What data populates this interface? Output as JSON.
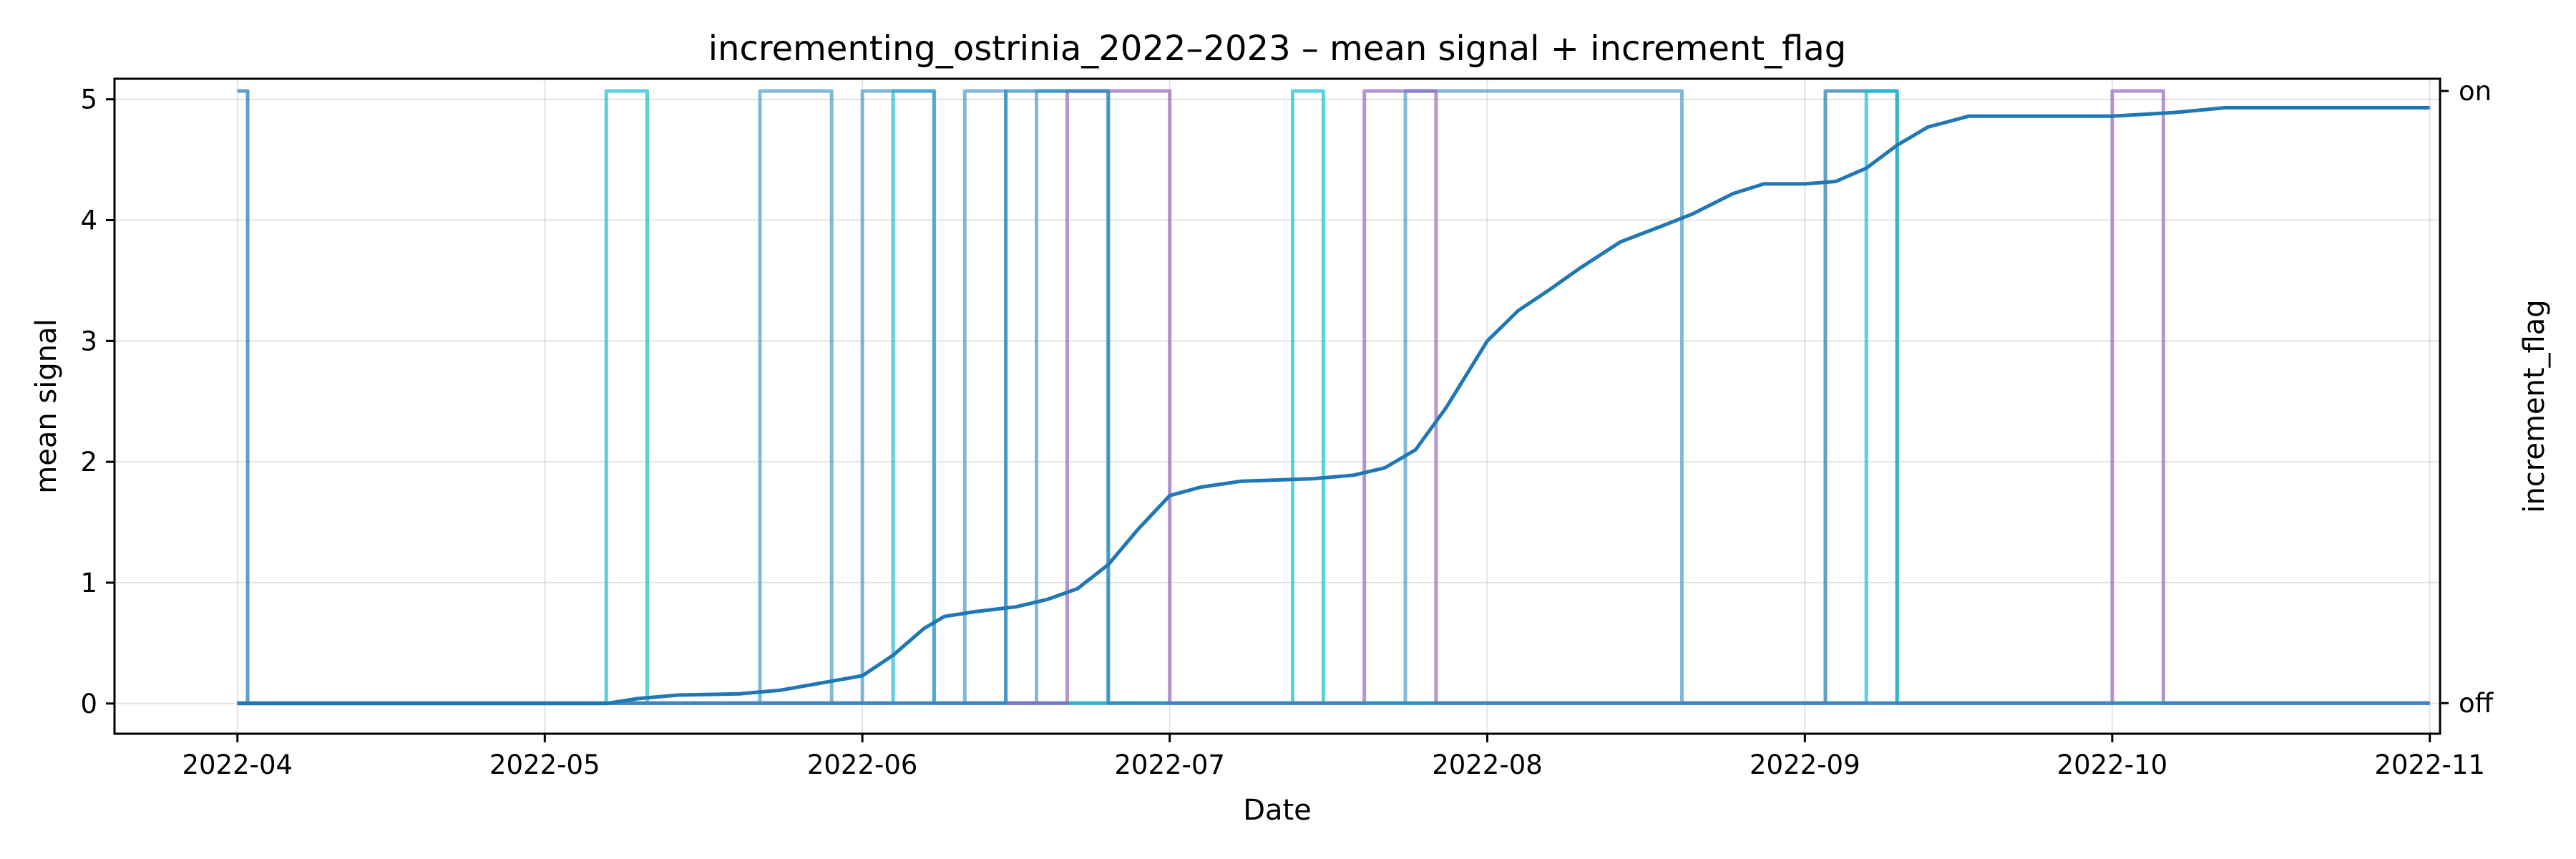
{
  "chart_data": {
    "type": "line",
    "title": "incrementing_ostrinia_2022–2023 – mean signal + increment_flag",
    "xlabel": "Date",
    "ylabel": "mean signal",
    "y2label": "increment_flag",
    "xlim": [
      "2022-03-20",
      "2022-11-02"
    ],
    "ylim": [
      -0.25,
      5.17
    ],
    "y2lim": [
      -0.05,
      1.02
    ],
    "grid": true,
    "x_ticks": [
      {
        "date": "2022-04-01",
        "label": "2022-04"
      },
      {
        "date": "2022-05-01",
        "label": "2022-05"
      },
      {
        "date": "2022-06-01",
        "label": "2022-06"
      },
      {
        "date": "2022-07-01",
        "label": "2022-07"
      },
      {
        "date": "2022-08-01",
        "label": "2022-08"
      },
      {
        "date": "2022-09-01",
        "label": "2022-09"
      },
      {
        "date": "2022-10-01",
        "label": "2022-10"
      },
      {
        "date": "2022-11-01",
        "label": "2022-11"
      }
    ],
    "y_ticks": [
      0,
      1,
      2,
      3,
      4,
      5
    ],
    "y2_ticks": [
      {
        "value": 0,
        "label": "off"
      },
      {
        "value": 1,
        "label": "on"
      }
    ],
    "series": [
      {
        "axis": "left",
        "color": "#1f77b4",
        "points": [
          [
            "2022-04-01",
            0
          ],
          [
            "2022-05-01",
            0
          ],
          [
            "2022-05-07",
            0
          ],
          [
            "2022-05-10",
            0.04
          ],
          [
            "2022-05-14",
            0.07
          ],
          [
            "2022-05-20",
            0.08
          ],
          [
            "2022-05-24",
            0.11
          ],
          [
            "2022-05-28",
            0.17
          ],
          [
            "2022-06-01",
            0.23
          ],
          [
            "2022-06-04",
            0.4
          ],
          [
            "2022-06-07",
            0.62
          ],
          [
            "2022-06-09",
            0.72
          ],
          [
            "2022-06-12",
            0.76
          ],
          [
            "2022-06-16",
            0.8
          ],
          [
            "2022-06-19",
            0.86
          ],
          [
            "2022-06-22",
            0.95
          ],
          [
            "2022-06-25",
            1.15
          ],
          [
            "2022-06-28",
            1.45
          ],
          [
            "2022-07-01",
            1.72
          ],
          [
            "2022-07-04",
            1.79
          ],
          [
            "2022-07-08",
            1.84
          ],
          [
            "2022-07-15",
            1.86
          ],
          [
            "2022-07-19",
            1.89
          ],
          [
            "2022-07-22",
            1.95
          ],
          [
            "2022-07-25",
            2.1
          ],
          [
            "2022-07-28",
            2.45
          ],
          [
            "2022-08-01",
            3.0
          ],
          [
            "2022-08-04",
            3.25
          ],
          [
            "2022-08-07",
            3.42
          ],
          [
            "2022-08-10",
            3.6
          ],
          [
            "2022-08-14",
            3.82
          ],
          [
            "2022-08-18",
            3.95
          ],
          [
            "2022-08-21",
            4.05
          ],
          [
            "2022-08-25",
            4.22
          ],
          [
            "2022-08-28",
            4.3
          ],
          [
            "2022-09-01",
            4.3
          ],
          [
            "2022-09-04",
            4.32
          ],
          [
            "2022-09-07",
            4.43
          ],
          [
            "2022-09-10",
            4.62
          ],
          [
            "2022-09-13",
            4.77
          ],
          [
            "2022-09-17",
            4.86
          ],
          [
            "2022-09-25",
            4.86
          ],
          [
            "2022-10-01",
            4.86
          ],
          [
            "2022-10-07",
            4.89
          ],
          [
            "2022-10-12",
            4.93
          ],
          [
            "2022-10-20",
            4.93
          ],
          [
            "2022-11-01",
            4.93
          ]
        ]
      },
      {
        "axis": "right",
        "color": "#1f77b4",
        "points": [
          [
            "2022-04-01",
            1
          ],
          [
            "2022-04-02",
            1
          ],
          [
            "2022-04-02",
            0
          ],
          [
            "2022-09-03",
            0
          ],
          [
            "2022-09-03",
            1
          ],
          [
            "2022-09-10",
            1
          ],
          [
            "2022-09-10",
            0
          ],
          [
            "2022-11-01",
            0
          ]
        ]
      },
      {
        "axis": "right",
        "color": "#17becf",
        "points": [
          [
            "2022-04-01",
            0
          ],
          [
            "2022-05-07",
            0
          ],
          [
            "2022-05-07",
            1
          ],
          [
            "2022-05-11",
            1
          ],
          [
            "2022-05-11",
            0
          ],
          [
            "2022-06-04",
            0
          ],
          [
            "2022-06-04",
            1
          ],
          [
            "2022-06-08",
            1
          ],
          [
            "2022-06-08",
            0
          ],
          [
            "2022-07-13",
            0
          ],
          [
            "2022-07-13",
            1
          ],
          [
            "2022-07-16",
            1
          ],
          [
            "2022-07-16",
            0
          ],
          [
            "2022-09-07",
            0
          ],
          [
            "2022-09-07",
            1
          ],
          [
            "2022-09-10",
            1
          ],
          [
            "2022-09-10",
            0
          ],
          [
            "2022-11-01",
            0
          ]
        ]
      },
      {
        "axis": "right",
        "color": "#4c9bc9",
        "points": [
          [
            "2022-04-01",
            0
          ],
          [
            "2022-05-22",
            0
          ],
          [
            "2022-05-22",
            1
          ],
          [
            "2022-05-29",
            1
          ],
          [
            "2022-05-29",
            0
          ],
          [
            "2022-06-01",
            0
          ],
          [
            "2022-06-01",
            1
          ],
          [
            "2022-06-08",
            1
          ],
          [
            "2022-06-08",
            0
          ],
          [
            "2022-06-11",
            0
          ],
          [
            "2022-06-11",
            1
          ],
          [
            "2022-06-15",
            1
          ],
          [
            "2022-06-15",
            0
          ],
          [
            "2022-06-18",
            0
          ],
          [
            "2022-06-18",
            1
          ],
          [
            "2022-06-25",
            1
          ],
          [
            "2022-06-25",
            0
          ],
          [
            "2022-07-24",
            0
          ],
          [
            "2022-07-24",
            1
          ],
          [
            "2022-08-20",
            1
          ],
          [
            "2022-08-20",
            0
          ],
          [
            "2022-11-01",
            0
          ]
        ]
      },
      {
        "axis": "right",
        "color": "#9467bd",
        "points": [
          [
            "2022-04-01",
            0
          ],
          [
            "2022-06-21",
            0
          ],
          [
            "2022-06-21",
            1
          ],
          [
            "2022-07-01",
            1
          ],
          [
            "2022-07-01",
            0
          ],
          [
            "2022-07-20",
            0
          ],
          [
            "2022-07-20",
            1
          ],
          [
            "2022-07-27",
            1
          ],
          [
            "2022-07-27",
            0
          ],
          [
            "2022-10-01",
            0
          ],
          [
            "2022-10-01",
            1
          ],
          [
            "2022-10-06",
            1
          ],
          [
            "2022-10-06",
            0
          ],
          [
            "2022-11-01",
            0
          ]
        ]
      },
      {
        "axis": "right",
        "color": "#2b8cbe",
        "points": [
          [
            "2022-04-01",
            0
          ],
          [
            "2022-06-15",
            0
          ],
          [
            "2022-06-15",
            1
          ],
          [
            "2022-06-25",
            1
          ],
          [
            "2022-06-25",
            0
          ],
          [
            "2022-11-01",
            0
          ]
        ]
      }
    ]
  }
}
